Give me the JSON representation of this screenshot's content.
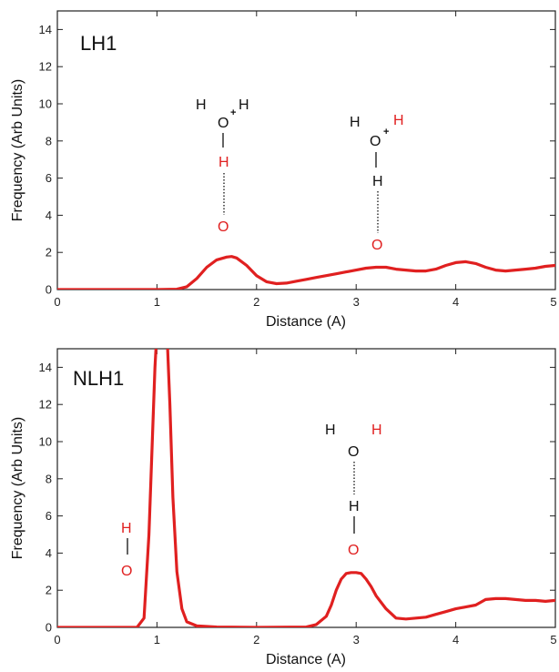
{
  "chart_data": [
    {
      "type": "line",
      "panel_label": "LH1",
      "xlabel": "Distance (A)",
      "ylabel": "Frequency (Arb Units)",
      "xlim": [
        0,
        5
      ],
      "ylim": [
        0,
        15
      ],
      "xticks": [
        0,
        1,
        2,
        3,
        4,
        5
      ],
      "yticks": [
        0,
        2,
        4,
        6,
        8,
        10,
        12,
        14
      ],
      "grid": false,
      "color": "#e02020",
      "series": [
        {
          "x": [
            0,
            1.0,
            1.2,
            1.3,
            1.4,
            1.5,
            1.6,
            1.7,
            1.75,
            1.8,
            1.9,
            2.0,
            2.1,
            2.2,
            2.3,
            2.4,
            2.5,
            2.6,
            2.7,
            2.8,
            2.9,
            3.0,
            3.1,
            3.2,
            3.3,
            3.4,
            3.5,
            3.6,
            3.7,
            3.8,
            3.9,
            4.0,
            4.1,
            4.2,
            4.3,
            4.4,
            4.5,
            4.6,
            4.7,
            4.8,
            4.9,
            5.0
          ],
          "y": [
            0,
            0,
            0.02,
            0.15,
            0.6,
            1.2,
            1.6,
            1.75,
            1.78,
            1.7,
            1.3,
            0.75,
            0.42,
            0.32,
            0.35,
            0.45,
            0.55,
            0.65,
            0.75,
            0.85,
            0.95,
            1.05,
            1.15,
            1.2,
            1.2,
            1.1,
            1.05,
            1.0,
            1.0,
            1.1,
            1.3,
            1.45,
            1.5,
            1.4,
            1.2,
            1.05,
            1.0,
            1.05,
            1.1,
            1.15,
            1.25,
            1.3
          ]
        }
      ],
      "annotations": [
        {
          "structure": "hydronium-donor",
          "x": 1.7,
          "atoms": [
            {
              "id": "H_a",
              "symbol": "H",
              "color": "black",
              "dx": -2,
              "dy": 0
            },
            {
              "id": "O_top",
              "symbol": "O",
              "color": "black",
              "dx": 0,
              "dy": 1
            },
            {
              "id": "plus",
              "symbol": "+",
              "color": "black",
              "dx": 1,
              "dy": 0.5
            },
            {
              "id": "H_b",
              "symbol": "H",
              "color": "black",
              "dx": 2,
              "dy": 0
            },
            {
              "id": "H_red",
              "symbol": "H",
              "color": "red",
              "dx": 0,
              "dy": 2
            },
            {
              "id": "O_red",
              "symbol": "O",
              "color": "red",
              "dx": 0,
              "dy": 4
            }
          ]
        },
        {
          "structure": "hydronium-acceptor",
          "x": 3.3,
          "atoms": [
            {
              "id": "H_a",
              "symbol": "H",
              "color": "black"
            },
            {
              "id": "O_top",
              "symbol": "O",
              "color": "black"
            },
            {
              "id": "plus",
              "symbol": "+",
              "color": "black"
            },
            {
              "id": "H_red",
              "symbol": "H",
              "color": "red"
            },
            {
              "id": "H_b",
              "symbol": "H",
              "color": "black"
            },
            {
              "id": "O_red",
              "symbol": "O",
              "color": "red"
            }
          ]
        }
      ]
    },
    {
      "type": "line",
      "panel_label": "NLH1",
      "xlabel": "Distance (A)",
      "ylabel": "Frequency (Arb Units)",
      "xlim": [
        0,
        5
      ],
      "ylim": [
        0,
        15
      ],
      "xticks": [
        0,
        1,
        2,
        3,
        4,
        5
      ],
      "yticks": [
        0,
        2,
        4,
        6,
        8,
        10,
        12,
        14
      ],
      "grid": false,
      "color": "#e02020",
      "series": [
        {
          "x": [
            0,
            0.8,
            0.87,
            0.92,
            0.96,
            0.98,
            1.0,
            1.05,
            1.1,
            1.13,
            1.16,
            1.2,
            1.25,
            1.3,
            1.4,
            1.6,
            2.0,
            2.5,
            2.6,
            2.7,
            2.75,
            2.8,
            2.85,
            2.9,
            2.95,
            3.0,
            3.05,
            3.1,
            3.15,
            3.2,
            3.3,
            3.4,
            3.5,
            3.6,
            3.7,
            3.8,
            3.9,
            4.0,
            4.1,
            4.2,
            4.3,
            4.4,
            4.5,
            4.6,
            4.7,
            4.8,
            4.9,
            5.0
          ],
          "y": [
            0,
            0,
            0.5,
            5.0,
            11.0,
            14.0,
            16.0,
            17.5,
            16.0,
            12.0,
            7.0,
            3.0,
            1.0,
            0.3,
            0.08,
            0.02,
            0.0,
            0.02,
            0.15,
            0.6,
            1.2,
            2.0,
            2.6,
            2.9,
            2.95,
            2.95,
            2.9,
            2.6,
            2.2,
            1.7,
            1.0,
            0.5,
            0.45,
            0.5,
            0.55,
            0.7,
            0.85,
            1.0,
            1.1,
            1.2,
            1.5,
            1.55,
            1.55,
            1.5,
            1.45,
            1.45,
            1.4,
            1.45
          ]
        }
      ],
      "annotations": [
        {
          "structure": "hydroxyl",
          "x": 0.7,
          "atoms": [
            {
              "id": "H_red",
              "symbol": "H",
              "color": "red"
            },
            {
              "id": "O_red",
              "symbol": "O",
              "color": "red"
            }
          ]
        },
        {
          "structure": "water-acceptor",
          "x": 3.0,
          "atoms": [
            {
              "id": "H_a",
              "symbol": "H",
              "color": "black"
            },
            {
              "id": "O_top",
              "symbol": "O",
              "color": "black"
            },
            {
              "id": "H_red",
              "symbol": "H",
              "color": "red"
            },
            {
              "id": "H_b",
              "symbol": "H",
              "color": "black"
            },
            {
              "id": "O_red",
              "symbol": "O",
              "color": "red"
            }
          ]
        }
      ]
    }
  ]
}
